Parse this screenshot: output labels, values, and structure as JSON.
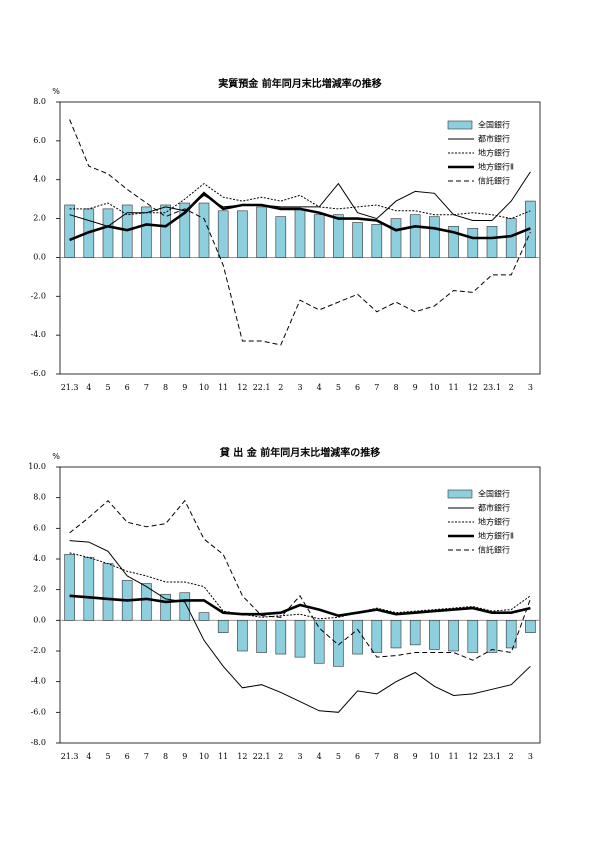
{
  "chart_data": [
    {
      "type": "bar-line",
      "title": "実質預金 前年同月末比増減率の推移",
      "y_label": "%",
      "categories": [
        "21.3",
        "4",
        "5",
        "6",
        "7",
        "8",
        "9",
        "10",
        "11",
        "12",
        "22.1",
        "2",
        "3",
        "4",
        "5",
        "6",
        "7",
        "8",
        "9",
        "10",
        "11",
        "12",
        "23.1",
        "2",
        "3"
      ],
      "ylim": [
        -6,
        8
      ],
      "yticks": [
        {
          "value": -6,
          "label": "-6.0"
        },
        {
          "value": -4,
          "label": "-4.0"
        },
        {
          "value": -2,
          "label": "-2.0"
        },
        {
          "value": 0,
          "label": "0.0"
        },
        {
          "value": 2,
          "label": "2.0"
        },
        {
          "value": 4,
          "label": "4.0"
        },
        {
          "value": 6,
          "label": "6.0"
        },
        {
          "value": 8,
          "label": "8.0"
        }
      ],
      "series": [
        {
          "name": "全国銀行",
          "style": "bar",
          "color": "#8ecfdf",
          "values": [
            2.7,
            2.5,
            2.5,
            2.7,
            2.6,
            2.7,
            2.8,
            2.8,
            2.4,
            2.4,
            2.6,
            2.1,
            2.5,
            2.2,
            2.2,
            1.8,
            1.7,
            2.0,
            2.2,
            2.1,
            1.6,
            1.5,
            1.6,
            2.0,
            2.9
          ]
        },
        {
          "name": "都市銀行",
          "style": "solid",
          "color": "#000000",
          "values": [
            2.2,
            1.9,
            1.6,
            2.3,
            2.3,
            2.6,
            2.4,
            3.2,
            2.6,
            2.7,
            2.7,
            2.6,
            2.6,
            2.6,
            3.8,
            2.3,
            2.0,
            2.9,
            3.4,
            3.3,
            2.2,
            1.9,
            1.9,
            2.9,
            4.4
          ]
        },
        {
          "name": "地方銀行",
          "style": "dotted",
          "color": "#000000",
          "values": [
            2.5,
            2.5,
            2.8,
            2.2,
            2.3,
            2.3,
            3.0,
            3.8,
            3.1,
            2.9,
            3.1,
            2.9,
            3.2,
            2.6,
            2.5,
            2.6,
            2.7,
            2.4,
            2.4,
            2.2,
            2.2,
            2.3,
            2.2,
            2.0,
            2.4
          ]
        },
        {
          "name": "地方銀行Ⅱ",
          "style": "thick",
          "color": "#000000",
          "values": [
            0.9,
            1.3,
            1.6,
            1.4,
            1.7,
            1.6,
            2.3,
            3.3,
            2.5,
            2.7,
            2.7,
            2.5,
            2.5,
            2.3,
            2.0,
            2.0,
            1.9,
            1.4,
            1.6,
            1.5,
            1.3,
            1.0,
            1.0,
            1.1,
            1.5
          ]
        },
        {
          "name": "信託銀行",
          "style": "dashed",
          "color": "#000000",
          "values": [
            7.1,
            4.7,
            4.3,
            3.5,
            2.8,
            2.1,
            2.5,
            2.0,
            -0.4,
            -4.3,
            -4.3,
            -4.5,
            -2.2,
            -2.7,
            -2.3,
            -1.9,
            -2.8,
            -2.3,
            -2.8,
            -2.5,
            -1.7,
            -1.8,
            -0.9,
            -0.9,
            1.3
          ]
        }
      ]
    },
    {
      "type": "bar-line",
      "title": "貸 出 金 前年同月末比増減率の推移",
      "y_label": "%",
      "categories": [
        "21.3",
        "4",
        "5",
        "6",
        "7",
        "8",
        "9",
        "10",
        "11",
        "12",
        "22.1",
        "2",
        "3",
        "4",
        "5",
        "6",
        "7",
        "8",
        "9",
        "10",
        "11",
        "12",
        "23.1",
        "2",
        "3"
      ],
      "ylim": [
        -8,
        10
      ],
      "yticks": [
        {
          "value": -8,
          "label": "-8.0"
        },
        {
          "value": -6,
          "label": "-6.0"
        },
        {
          "value": -4,
          "label": "-4.0"
        },
        {
          "value": -2,
          "label": "-2.0"
        },
        {
          "value": 0,
          "label": "0.0"
        },
        {
          "value": 2,
          "label": "2.0"
        },
        {
          "value": 4,
          "label": "4.0"
        },
        {
          "value": 6,
          "label": "6.0"
        },
        {
          "value": 8,
          "label": "8.0"
        },
        {
          "value": 10,
          "label": "10.0"
        }
      ],
      "series": [
        {
          "name": "全国銀行",
          "style": "bar",
          "color": "#8ecfdf",
          "values": [
            4.3,
            4.1,
            3.7,
            2.6,
            2.4,
            1.7,
            1.8,
            0.5,
            -0.8,
            -2.0,
            -2.1,
            -2.2,
            -2.4,
            -2.8,
            -3.0,
            -2.2,
            -2.1,
            -1.8,
            -1.6,
            -1.9,
            -2.0,
            -2.1,
            -2.1,
            -1.8,
            -0.8
          ]
        },
        {
          "name": "都市銀行",
          "style": "solid",
          "color": "#000000",
          "values": [
            5.2,
            5.1,
            4.5,
            2.9,
            2.2,
            1.4,
            1.2,
            -1.3,
            -3.0,
            -4.4,
            -4.2,
            -4.7,
            -5.3,
            -5.9,
            -6.0,
            -4.6,
            -4.8,
            -4.0,
            -3.4,
            -4.3,
            -4.9,
            -4.8,
            -4.5,
            -4.2,
            -3.0
          ]
        },
        {
          "name": "地方銀行",
          "style": "dotted",
          "color": "#000000",
          "values": [
            4.4,
            4.1,
            3.7,
            3.2,
            2.9,
            2.5,
            2.5,
            2.2,
            0.6,
            0.4,
            0.2,
            0.3,
            0.4,
            0.1,
            0.2,
            0.5,
            0.8,
            0.5,
            0.6,
            0.7,
            0.8,
            0.9,
            0.6,
            0.7,
            1.6
          ]
        },
        {
          "name": "地方銀行Ⅱ",
          "style": "thick",
          "color": "#000000",
          "values": [
            1.6,
            1.5,
            1.4,
            1.3,
            1.4,
            1.2,
            1.3,
            1.3,
            0.5,
            0.4,
            0.4,
            0.5,
            1.0,
            0.7,
            0.3,
            0.5,
            0.7,
            0.4,
            0.5,
            0.6,
            0.7,
            0.8,
            0.5,
            0.5,
            0.8
          ]
        },
        {
          "name": "信託銀行",
          "style": "dashed",
          "color": "#000000",
          "values": [
            5.7,
            6.7,
            7.8,
            6.4,
            6.1,
            6.3,
            7.8,
            5.3,
            4.3,
            1.6,
            0.3,
            0.2,
            1.6,
            -0.5,
            -1.6,
            -0.6,
            -2.4,
            -2.3,
            -2.1,
            -2.1,
            -2.1,
            -2.6,
            -1.9,
            -2.1,
            1.4
          ]
        }
      ]
    }
  ]
}
